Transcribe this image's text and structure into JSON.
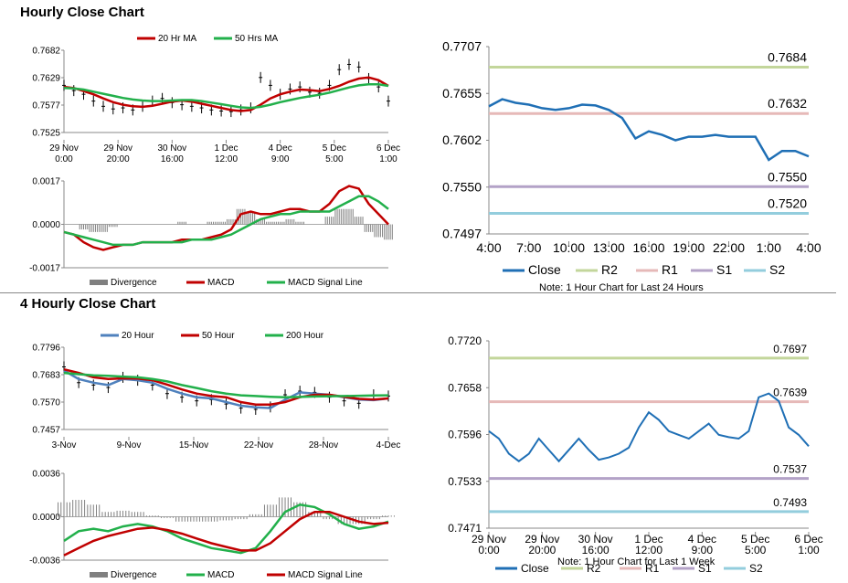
{
  "sections": {
    "hourly_title": "Hourly Close Chart",
    "four_hourly_title": "4 Hourly Close Chart"
  },
  "colors": {
    "close": "#1f6fb5",
    "ma_red": "#c00000",
    "ma_green": "#22b04b",
    "ma_blue": "#4f81bd",
    "r2": "#c3d69b",
    "r1": "#e6b9b8",
    "s1": "#b3a2c7",
    "s2": "#93cddd",
    "divergence": "#808080"
  },
  "chart_data": [
    {
      "id": "hourly_price",
      "type": "line",
      "legend": [
        "20 Hr MA",
        "50 Hrs MA"
      ],
      "y_ticks": [
        "0.7682",
        "0.7629",
        "0.7577",
        "0.7525"
      ],
      "ylim": [
        0.7525,
        0.7682
      ],
      "x_labels": [
        [
          "29 Nov",
          "0:00"
        ],
        [
          "29 Nov",
          "20:00"
        ],
        [
          "30 Nov",
          "16:00"
        ],
        [
          "1 Dec",
          "12:00"
        ],
        [
          "4 Dec",
          "9:00"
        ],
        [
          "5 Dec",
          "5:00"
        ],
        [
          "6 Dec",
          "1:00"
        ]
      ],
      "series": [
        {
          "name": "20 Hr MA",
          "values": [
            0.7612,
            0.761,
            0.7604,
            0.7598,
            0.759,
            0.7583,
            0.7578,
            0.7575,
            0.7574,
            0.7576,
            0.758,
            0.7584,
            0.7586,
            0.7584,
            0.758,
            0.7576,
            0.7572,
            0.7568,
            0.7566,
            0.7568,
            0.7578,
            0.759,
            0.7598,
            0.7603,
            0.7607,
            0.7606,
            0.7604,
            0.7608,
            0.7614,
            0.7622,
            0.7628,
            0.763,
            0.7625,
            0.7614
          ]
        },
        {
          "name": "50 Hrs MA",
          "values": [
            0.761,
            0.7609,
            0.7607,
            0.7603,
            0.7599,
            0.7595,
            0.7591,
            0.7588,
            0.7586,
            0.7585,
            0.7585,
            0.7586,
            0.7587,
            0.7587,
            0.7585,
            0.7582,
            0.7579,
            0.7576,
            0.7573,
            0.7572,
            0.7574,
            0.7578,
            0.7583,
            0.7587,
            0.7591,
            0.7594,
            0.7597,
            0.7601,
            0.7606,
            0.7611,
            0.7615,
            0.7617,
            0.7617,
            0.7614
          ]
        }
      ],
      "close": [
        0.7615,
        0.7605,
        0.7598,
        0.7585,
        0.7575,
        0.757,
        0.7572,
        0.7568,
        0.7575,
        0.7585,
        0.759,
        0.7582,
        0.7578,
        0.7575,
        0.7572,
        0.7568,
        0.7566,
        0.7565,
        0.7568,
        0.7572,
        0.763,
        0.7615,
        0.7598,
        0.7608,
        0.7612,
        0.7602,
        0.76,
        0.7615,
        0.7645,
        0.7655,
        0.765,
        0.7628,
        0.7612,
        0.7585
      ]
    },
    {
      "id": "hourly_macd",
      "type": "line",
      "legend": [
        "Divergence",
        "MACD",
        "MACD Signal Line"
      ],
      "y_ticks": [
        "0.0017",
        "0.0000",
        "-0.0017"
      ],
      "ylim": [
        -0.0017,
        0.0017
      ],
      "series": [
        {
          "name": "MACD",
          "values": [
            -0.0003,
            -0.0004,
            -0.0007,
            -0.0009,
            -0.001,
            -0.0009,
            -0.0008,
            -0.0008,
            -0.0007,
            -0.0007,
            -0.0007,
            -0.0007,
            -0.0006,
            -0.0006,
            -0.0006,
            -0.0005,
            -0.0004,
            -0.0002,
            0.0004,
            0.0005,
            0.0004,
            0.0004,
            0.0005,
            0.0006,
            0.0006,
            0.0005,
            0.0005,
            0.0008,
            0.0013,
            0.0015,
            0.0014,
            0.0008,
            0.0004,
            0.0
          ]
        },
        {
          "name": "MACD Signal Line",
          "values": [
            -0.0003,
            -0.0004,
            -0.0005,
            -0.0006,
            -0.0007,
            -0.0008,
            -0.0008,
            -0.0008,
            -0.0007,
            -0.0007,
            -0.0007,
            -0.0007,
            -0.0007,
            -0.0006,
            -0.0006,
            -0.0006,
            -0.0005,
            -0.0004,
            -0.0002,
            0.0,
            0.0002,
            0.0003,
            0.0004,
            0.0004,
            0.0005,
            0.0005,
            0.0005,
            0.0005,
            0.0007,
            0.0009,
            0.0011,
            0.0011,
            0.0009,
            0.0006
          ]
        }
      ],
      "divergence": [
        0.0,
        0.0,
        -0.0002,
        -0.0003,
        -0.0003,
        -0.0001,
        0.0,
        0.0,
        0.0,
        0.0,
        0.0,
        0.0,
        0.0001,
        0.0,
        0.0,
        0.0001,
        0.0001,
        0.0002,
        0.0006,
        0.0005,
        0.0002,
        0.0001,
        0.0001,
        0.0002,
        0.0001,
        0.0,
        0.0,
        0.0003,
        0.0006,
        0.0006,
        0.0003,
        -0.0003,
        -0.0005,
        -0.0006
      ]
    },
    {
      "id": "hourly_pivots",
      "type": "line",
      "y_ticks": [
        "0.7707",
        "0.7655",
        "0.7602",
        "0.7550",
        "0.7497"
      ],
      "ylim": [
        0.7497,
        0.7707
      ],
      "x_labels": [
        "4:00",
        "7:00",
        "10:00",
        "13:00",
        "16:00",
        "19:00",
        "22:00",
        "1:00",
        "4:00"
      ],
      "levels": [
        {
          "name": "R2",
          "value": 0.7684,
          "label": "0.7684"
        },
        {
          "name": "R1",
          "value": 0.7632,
          "label": "0.7632"
        },
        {
          "name": "S1",
          "value": 0.755,
          "label": "0.7550"
        },
        {
          "name": "S2",
          "value": 0.752,
          "label": "0.7520"
        }
      ],
      "close": [
        0.764,
        0.7648,
        0.7644,
        0.7642,
        0.7638,
        0.7636,
        0.7638,
        0.7642,
        0.7641,
        0.7636,
        0.7627,
        0.7604,
        0.7612,
        0.7608,
        0.7602,
        0.7606,
        0.7606,
        0.7608,
        0.7606,
        0.7606,
        0.7606,
        0.758,
        0.759,
        0.759,
        0.7584
      ],
      "legend": [
        "Close",
        "R2",
        "R1",
        "S1",
        "S2"
      ],
      "note": "Note: 1 Hour Chart for Last 24 Hours"
    },
    {
      "id": "four_hourly_price",
      "type": "line",
      "legend": [
        "20 Hour",
        "50 Hour",
        "200 Hour"
      ],
      "y_ticks": [
        "0.7796",
        "0.7683",
        "0.7570",
        "0.7457"
      ],
      "ylim": [
        0.7457,
        0.7796
      ],
      "x_labels": [
        "3-Nov",
        "9-Nov",
        "15-Nov",
        "22-Nov",
        "28-Nov",
        "4-Dec"
      ],
      "series": [
        {
          "name": "20 Hour",
          "values": [
            0.77,
            0.7665,
            0.765,
            0.764,
            0.7665,
            0.766,
            0.765,
            0.7625,
            0.7605,
            0.759,
            0.7585,
            0.757,
            0.7555,
            0.7548,
            0.7545,
            0.758,
            0.761,
            0.7605,
            0.76,
            0.759,
            0.758,
            0.7578,
            0.7585
          ]
        },
        {
          "name": "50 Hour",
          "values": [
            0.7705,
            0.769,
            0.7672,
            0.7665,
            0.7668,
            0.7667,
            0.766,
            0.7642,
            0.7622,
            0.7605,
            0.7595,
            0.759,
            0.757,
            0.756,
            0.756,
            0.757,
            0.759,
            0.76,
            0.76,
            0.7592,
            0.7583,
            0.758,
            0.7585
          ]
        },
        {
          "name": "200 Hour",
          "values": [
            0.769,
            0.7685,
            0.768,
            0.7678,
            0.7675,
            0.7672,
            0.7665,
            0.7655,
            0.764,
            0.7628,
            0.7615,
            0.7605,
            0.7598,
            0.7595,
            0.7592,
            0.759,
            0.7591,
            0.7593,
            0.7594,
            0.7595,
            0.7596,
            0.7597,
            0.7598
          ]
        }
      ],
      "close": [
        0.7715,
        0.765,
        0.764,
        0.763,
        0.7672,
        0.766,
        0.764,
        0.7605,
        0.759,
        0.7575,
        0.758,
        0.7562,
        0.7545,
        0.754,
        0.755,
        0.76,
        0.7615,
        0.761,
        0.759,
        0.7575,
        0.7565,
        0.76,
        0.7595
      ]
    },
    {
      "id": "four_hourly_macd",
      "type": "line",
      "legend": [
        "Divergence",
        "MACD",
        "MACD Signal Line"
      ],
      "y_ticks": [
        "0.0036",
        "0.0000",
        "-0.0036"
      ],
      "ylim": [
        -0.0036,
        0.0036
      ],
      "series": [
        {
          "name": "MACD",
          "values": [
            -0.002,
            -0.0012,
            -0.001,
            -0.0012,
            -0.0008,
            -0.0006,
            -0.0008,
            -0.0012,
            -0.0018,
            -0.0022,
            -0.0026,
            -0.0028,
            -0.003,
            -0.0026,
            -0.0012,
            0.0004,
            0.001,
            0.0008,
            0.0002,
            -0.0006,
            -0.001,
            -0.0008,
            -0.0004
          ]
        },
        {
          "name": "MACD Signal Line",
          "values": [
            -0.0032,
            -0.0026,
            -0.002,
            -0.0016,
            -0.0013,
            -0.001,
            -0.0009,
            -0.0011,
            -0.0014,
            -0.0018,
            -0.0022,
            -0.0025,
            -0.0028,
            -0.0028,
            -0.0022,
            -0.0012,
            -0.0002,
            0.0004,
            0.0004,
            0.0,
            -0.0004,
            -0.0006,
            -0.0005
          ]
        }
      ],
      "divergence": [
        0.0012,
        0.0014,
        0.001,
        0.0004,
        0.0005,
        0.0004,
        0.0001,
        -0.0001,
        -0.0004,
        -0.0004,
        -0.0004,
        -0.0003,
        -0.0002,
        0.0002,
        0.001,
        0.0016,
        0.0012,
        0.0004,
        -0.0002,
        -0.0006,
        -0.0006,
        -0.0002,
        0.0001
      ]
    },
    {
      "id": "four_hourly_pivots",
      "type": "line",
      "y_ticks": [
        "0.7720",
        "0.7658",
        "0.7596",
        "0.7533",
        "0.7471"
      ],
      "ylim": [
        0.7471,
        0.772
      ],
      "x_labels": [
        [
          "29 Nov",
          "0:00"
        ],
        [
          "29 Nov",
          "20:00"
        ],
        [
          "30 Nov",
          "16:00"
        ],
        [
          "1 Dec",
          "12:00"
        ],
        [
          "4 Dec",
          "9:00"
        ],
        [
          "5 Dec",
          "5:00"
        ],
        [
          "6 Dec",
          "1:00"
        ]
      ],
      "levels": [
        {
          "name": "R2",
          "value": 0.7697,
          "label": "0.7697"
        },
        {
          "name": "R1",
          "value": 0.7639,
          "label": "0.7639"
        },
        {
          "name": "S1",
          "value": 0.7537,
          "label": "0.7537"
        },
        {
          "name": "S2",
          "value": 0.7493,
          "label": "0.7493"
        }
      ],
      "close": [
        0.76,
        0.759,
        0.757,
        0.756,
        0.757,
        0.759,
        0.7575,
        0.756,
        0.7575,
        0.759,
        0.7575,
        0.7562,
        0.7565,
        0.757,
        0.7578,
        0.7605,
        0.7625,
        0.7615,
        0.76,
        0.7595,
        0.759,
        0.76,
        0.761,
        0.7595,
        0.7592,
        0.759,
        0.76,
        0.7645,
        0.765,
        0.764,
        0.7605,
        0.7595,
        0.758
      ],
      "legend": [
        "Close",
        "R2",
        "R1",
        "S1",
        "S2"
      ],
      "note": "Note: 1 Hour Chart for Last 1 Week"
    }
  ]
}
